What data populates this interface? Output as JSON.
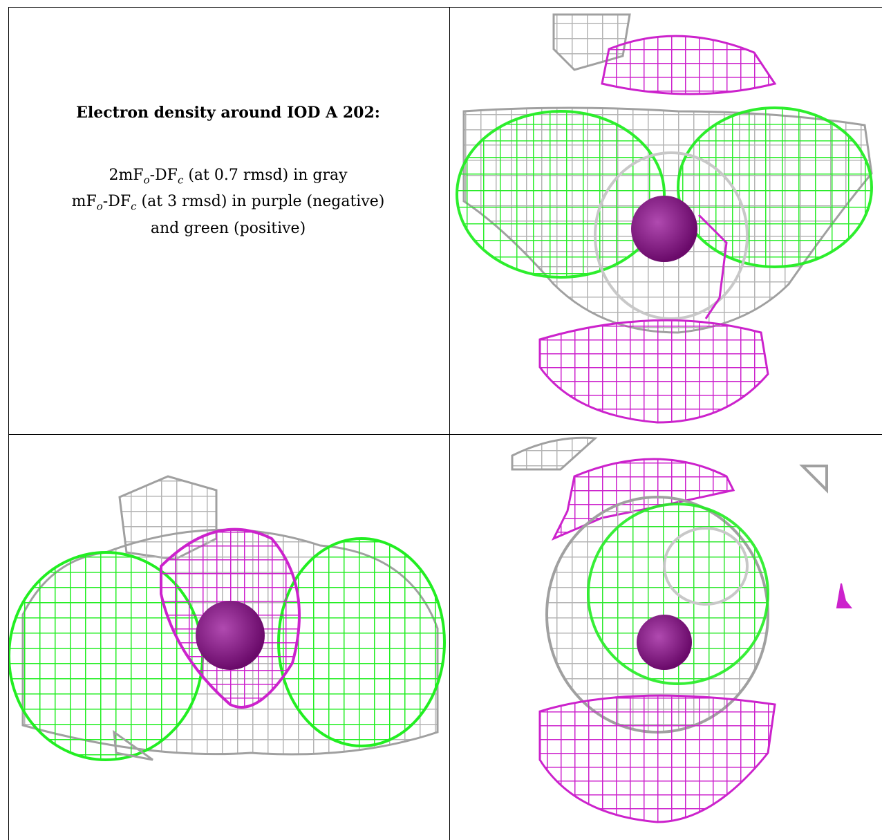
{
  "caption": {
    "title": "Electron density around IOD A 202:",
    "line1": {
      "a": "2mF",
      "b": "o",
      "c": "-DF",
      "d": "c",
      "e": " (at 0.7 rmsd) in gray"
    },
    "line2": {
      "a": "mF",
      "b": "o",
      "c": "-DF",
      "d": "c",
      "e": " (at 3 rmsd) in purple (negative)"
    },
    "line3": "and green (positive)"
  },
  "colors": {
    "gray_map": "#b4b4b4",
    "negative_map": "#cc22cc",
    "positive_map": "#22ee22",
    "atom": "#8a1a8a",
    "border": "#000000"
  },
  "panels": [
    {
      "id": "caption-panel"
    },
    {
      "id": "view-top-right"
    },
    {
      "id": "view-bottom-left"
    },
    {
      "id": "view-bottom-right"
    }
  ]
}
